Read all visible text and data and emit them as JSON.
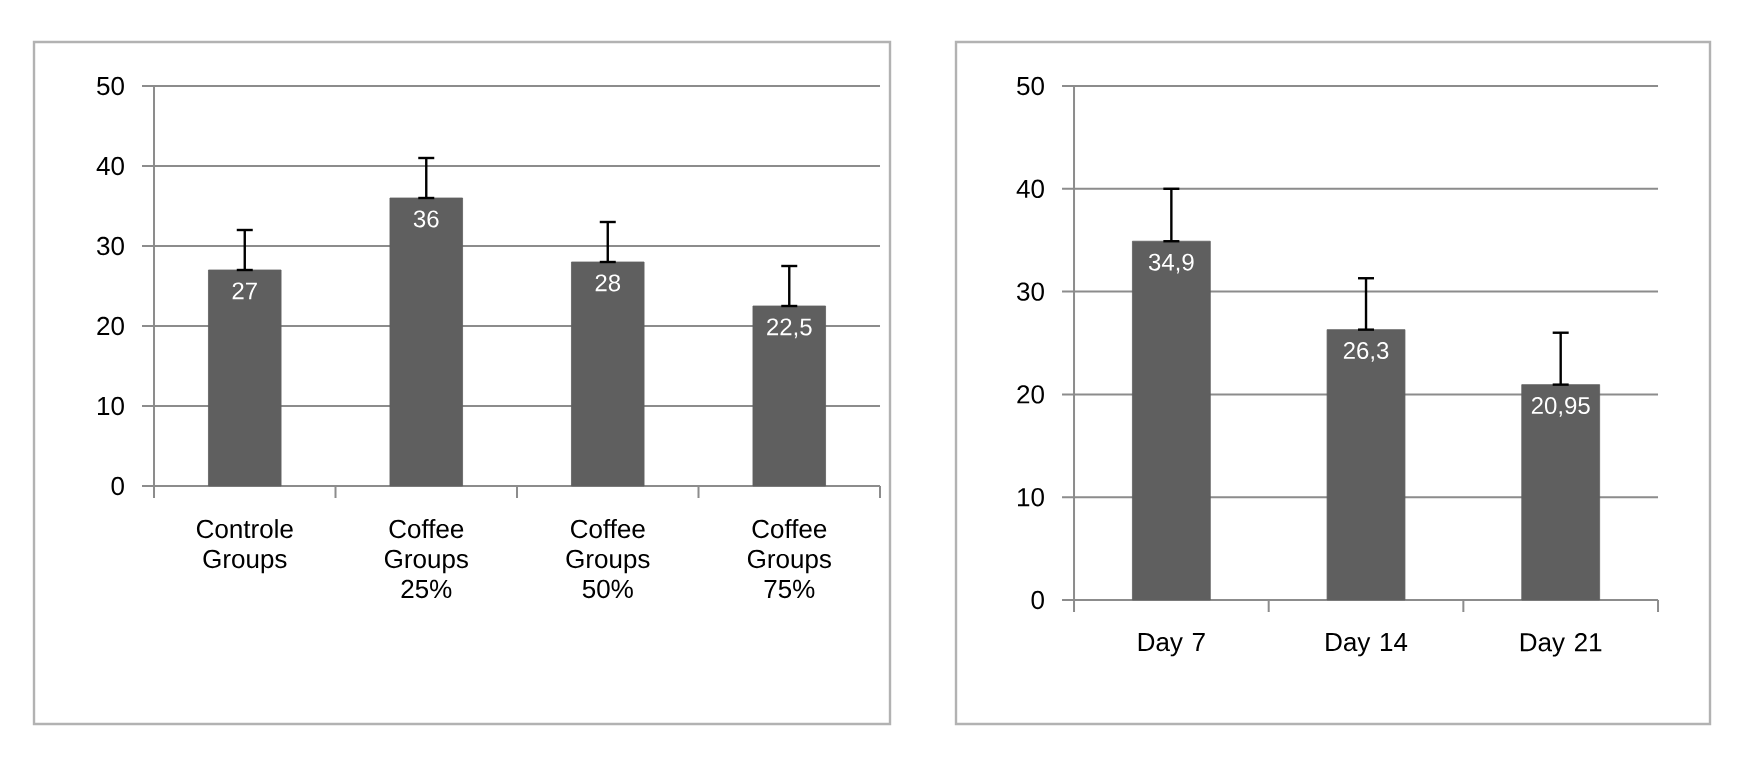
{
  "chart_data": [
    {
      "type": "bar",
      "categories": [
        "Controle Groups",
        "Coffee Groups 25%",
        "Coffee Groups 50%",
        "Coffee Groups 75%"
      ],
      "values": [
        27,
        36,
        28,
        22.5
      ],
      "color": "#5f5f5f",
      "errors": [
        [
          27,
          32
        ],
        [
          36,
          41
        ],
        [
          28,
          33
        ],
        [
          22.5,
          27.5
        ]
      ],
      "value_labels": [
        "27",
        "36",
        "28",
        "22,5"
      ],
      "ylim": [
        0,
        50
      ],
      "yticks": [
        0,
        10,
        20,
        30,
        40,
        50
      ],
      "grid": "y"
    },
    {
      "type": "bar",
      "categories": [
        "Day 7",
        "Day 14",
        "Day 21"
      ],
      "values": [
        34.9,
        26.3,
        20.95
      ],
      "color": "#5f5f5f",
      "errors": [
        [
          34.9,
          40
        ],
        [
          26.3,
          31.3
        ],
        [
          20.95,
          26
        ]
      ],
      "value_labels": [
        "34,9",
        "26,3",
        "20,95"
      ],
      "ylim": [
        0,
        50
      ],
      "yticks": [
        0,
        10,
        20,
        30,
        40,
        50
      ],
      "grid": "y"
    }
  ]
}
